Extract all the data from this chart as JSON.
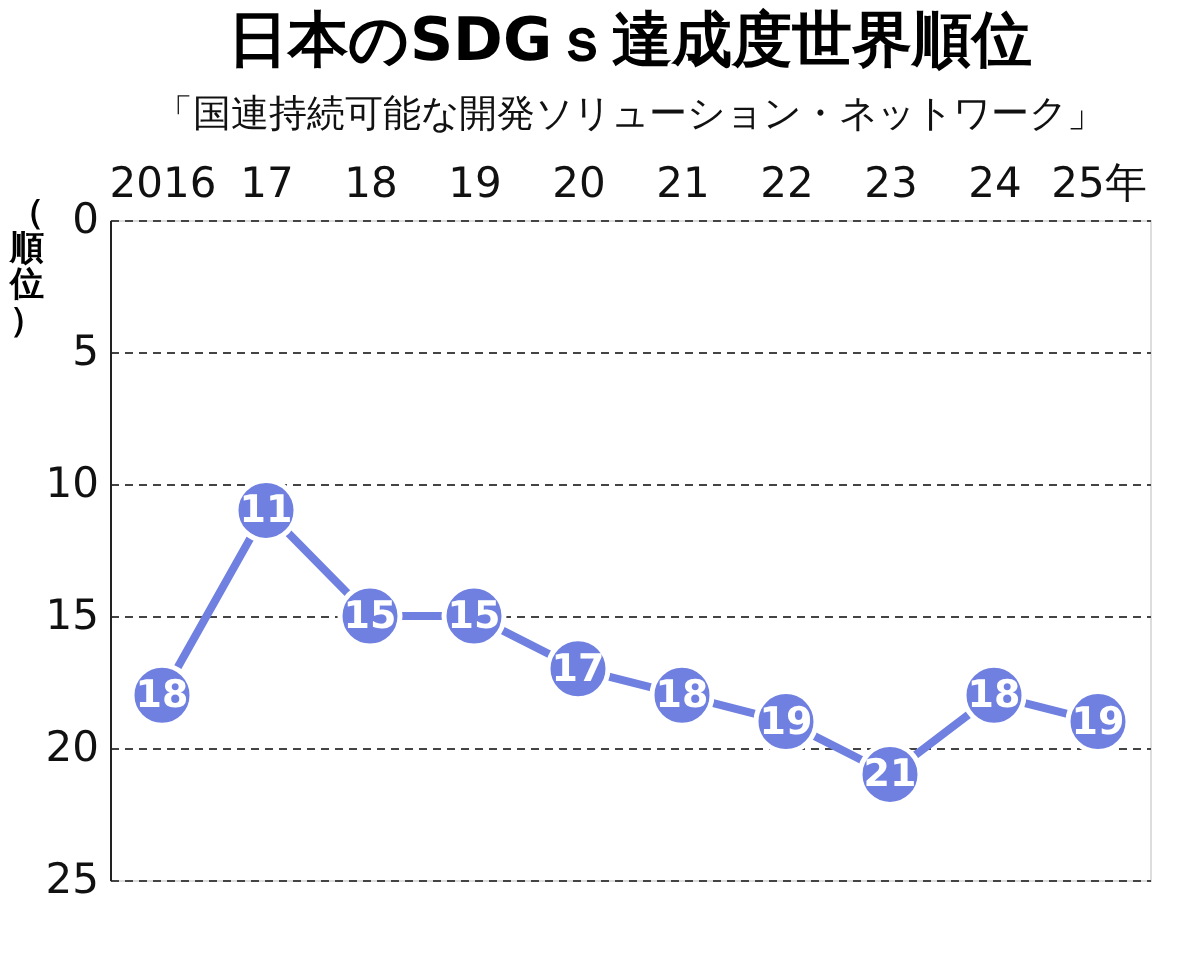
{
  "chart_data": {
    "type": "line",
    "title": "日本のSDGｓ達成度世界順位",
    "subtitle": "「国連持続可能な開発ソリューション・ネットワーク」",
    "ylabel": "（順位）",
    "categories": [
      "2016",
      "17",
      "18",
      "19",
      "20",
      "21",
      "22",
      "23",
      "24",
      "25年"
    ],
    "series": [
      {
        "color": "#6f80e0",
        "values": [
          18,
          11,
          15,
          15,
          17,
          18,
          19,
          21,
          18,
          19
        ]
      }
    ],
    "ylim": [
      25,
      0
    ],
    "yticks": [
      0,
      5,
      10,
      15,
      20,
      25
    ],
    "grid": "y",
    "marker": "circle",
    "line_style": "solid",
    "data_labels": true
  }
}
